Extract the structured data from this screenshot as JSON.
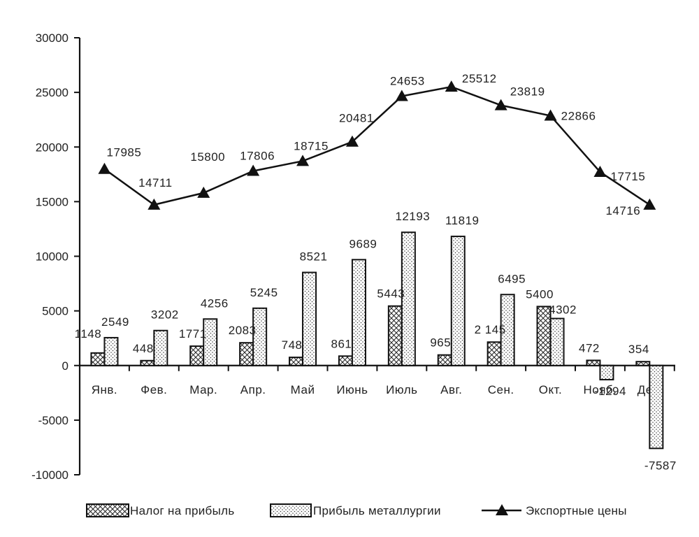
{
  "chart_data": {
    "type": "bar",
    "categories": [
      "Янв.",
      "Фев.",
      "Мар.",
      "Апр.",
      "Май",
      "Июнь",
      "Июль",
      "Авг.",
      "Сен.",
      "Окт.",
      "Нояб.",
      "Дек."
    ],
    "series": [
      {
        "name": "Налог на прибыль",
        "type": "bar",
        "pattern": "crosshatch",
        "values": [
          1148,
          448,
          1771,
          2083,
          748,
          861,
          5443,
          965,
          2145,
          5400,
          472,
          354
        ],
        "labels": [
          "1148",
          "448",
          "1771",
          "2083",
          "748",
          "861",
          "5443",
          "965",
          "2 145",
          "5400",
          "472",
          "354"
        ]
      },
      {
        "name": "Прибыль металлургии",
        "type": "bar",
        "pattern": "dotted",
        "values": [
          2549,
          3202,
          4256,
          5245,
          8521,
          9689,
          12193,
          11819,
          6495,
          4302,
          -1294,
          -7587
        ],
        "labels": [
          "2549",
          "3202",
          "4256",
          "5245",
          "8521",
          "9689",
          "12193",
          "11819",
          "6495",
          "4302",
          "-1294",
          "-7587"
        ]
      },
      {
        "name": "Экспортные цены",
        "type": "line",
        "marker": "triangle",
        "values": [
          17985,
          14711,
          15800,
          17806,
          18715,
          20481,
          24653,
          25512,
          23819,
          22866,
          17715,
          14716
        ],
        "labels": [
          "17985",
          "14711",
          "15800",
          "17806",
          "18715",
          "20481",
          "24653",
          "25512",
          "23819",
          "22866",
          "17715",
          "14716"
        ]
      }
    ],
    "yticks": [
      "30000",
      "25000",
      "20000",
      "15000",
      "10000",
      "5000",
      "0",
      "-5000",
      "-10000"
    ],
    "ylim": [
      -10000,
      30000
    ],
    "title": "",
    "xlabel": "",
    "ylabel": "",
    "grid": false,
    "legend_position": "bottom",
    "colors": {
      "bar_outline": "#111111",
      "line": "#111111",
      "background": "#ffffff"
    }
  }
}
